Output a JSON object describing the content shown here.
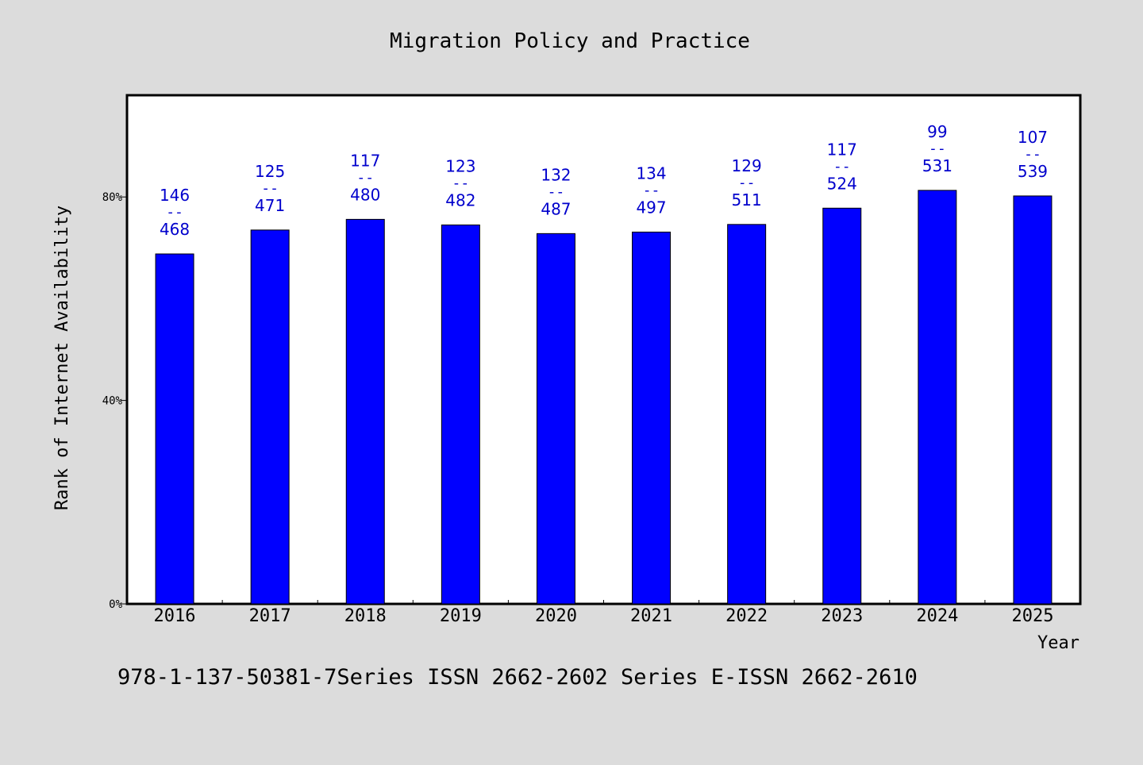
{
  "chart_data": {
    "type": "bar",
    "title": "Migration Policy and Practice",
    "xlabel": "Year",
    "ylabel": "Rank of Internet Availability",
    "footer": "978-1-137-50381-7Series ISSN 2662-2602 Series E-ISSN 2662-2610",
    "categories": [
      "2016",
      "2017",
      "2018",
      "2019",
      "2020",
      "2021",
      "2022",
      "2023",
      "2024",
      "2025"
    ],
    "values": [
      68.8,
      73.5,
      75.6,
      74.5,
      72.8,
      73.1,
      74.6,
      77.8,
      81.3,
      80.2
    ],
    "labels_top": [
      "146",
      "125",
      "117",
      "123",
      "132",
      "134",
      "129",
      "117",
      "99",
      "107"
    ],
    "labels_sep": [
      "--",
      "--",
      "--",
      "--",
      "--",
      "--",
      "--",
      "--",
      "--",
      "--"
    ],
    "labels_bottom": [
      "468",
      "471",
      "480",
      "482",
      "487",
      "497",
      "511",
      "524",
      "531",
      "539"
    ],
    "ylim": [
      0,
      100
    ],
    "y_ticks": [
      0,
      40,
      80
    ],
    "y_tick_labels": [
      "0%",
      "40%",
      "80%"
    ],
    "grid": false,
    "legend": "none",
    "colors": {
      "bar": "#0000ff",
      "label": "#0000cc",
      "background": "#dcdcdc",
      "plot_bg": "#ffffff"
    }
  }
}
